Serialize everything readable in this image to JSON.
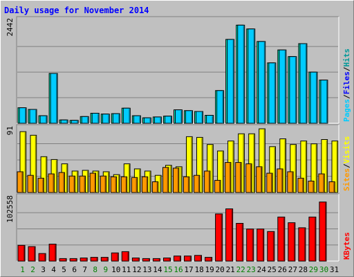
{
  "chart_data": {
    "type": "bar",
    "title": "Daily usage for November 2014",
    "categories": [
      "1",
      "2",
      "3",
      "4",
      "5",
      "6",
      "7",
      "8",
      "9",
      "10",
      "11",
      "12",
      "13",
      "14",
      "15",
      "16",
      "17",
      "18",
      "19",
      "20",
      "21",
      "22",
      "23",
      "24",
      "25",
      "26",
      "27",
      "28",
      "29",
      "30",
      "31"
    ],
    "weekend_days": [
      "1",
      "2",
      "8",
      "9",
      "15",
      "16",
      "22",
      "23",
      "29",
      "30"
    ],
    "panels": [
      {
        "id": "pages_files_hits",
        "ymax_label": "2442",
        "ymax": 2442,
        "legend": [
          "Pages",
          "/",
          "Files",
          "/",
          "Hits"
        ],
        "series": [
          {
            "name": "Hits",
            "color": "#00ffcc",
            "values": [
              370,
              330,
              180,
              1190,
              80,
              70,
              160,
              240,
              220,
              230,
              360,
              180,
              130,
              150,
              170,
              320,
              300,
              280,
              190,
              780,
              2000,
              2340,
              2250,
              1950,
              1440,
              1750,
              1590,
              1900,
              1220,
              1030,
              0
            ]
          },
          {
            "name": "Files",
            "color": "#00ccff",
            "values": [
              370,
              330,
              180,
              1190,
              80,
              70,
              160,
              240,
              220,
              230,
              360,
              180,
              130,
              150,
              170,
              320,
              300,
              280,
              190,
              780,
              2000,
              2340,
              2250,
              1950,
              1440,
              1750,
              1590,
              1900,
              1220,
              1030,
              0
            ]
          }
        ]
      },
      {
        "id": "visits_sites",
        "ymax_label": "91",
        "ymax": 91,
        "legend": [
          "Sites",
          "/",
          "Visits"
        ],
        "series": [
          {
            "name": "Visits",
            "color": "#ffff00",
            "values": [
              85,
              80,
              50,
              46,
              40,
              30,
              31,
              30,
              29,
              25,
              40,
              33,
              30,
              24,
              38,
              36,
              78,
              77,
              67,
              58,
              72,
              82,
              82,
              89,
              64,
              75,
              67,
              72,
              68,
              74,
              72
            ]
          },
          {
            "name": "Sites",
            "color": "#ff9900",
            "values": [
              29,
              24,
              20,
              26,
              28,
              23,
              23,
              27,
              23,
              22,
              22,
              21,
              22,
              15,
              35,
              34,
              22,
              24,
              30,
              17,
              42,
              42,
              40,
              36,
              27,
              33,
              29,
              20,
              16,
              26,
              15
            ]
          }
        ]
      },
      {
        "id": "kbytes",
        "ymax_label": "102558",
        "ymax": 102558,
        "legend": [
          "KBytes"
        ],
        "series": [
          {
            "name": "KBytes",
            "color": "#ff0000",
            "values": [
              25000,
              23000,
              12000,
              27000,
              4000,
              4000,
              5000,
              6000,
              6000,
              13000,
              15000,
              5000,
              4000,
              4000,
              5000,
              8000,
              8000,
              9000,
              6000,
              75000,
              83000,
              60000,
              51000,
              51000,
              47000,
              70000,
              61000,
              53000,
              70000,
              94000,
              0
            ]
          }
        ]
      }
    ]
  }
}
